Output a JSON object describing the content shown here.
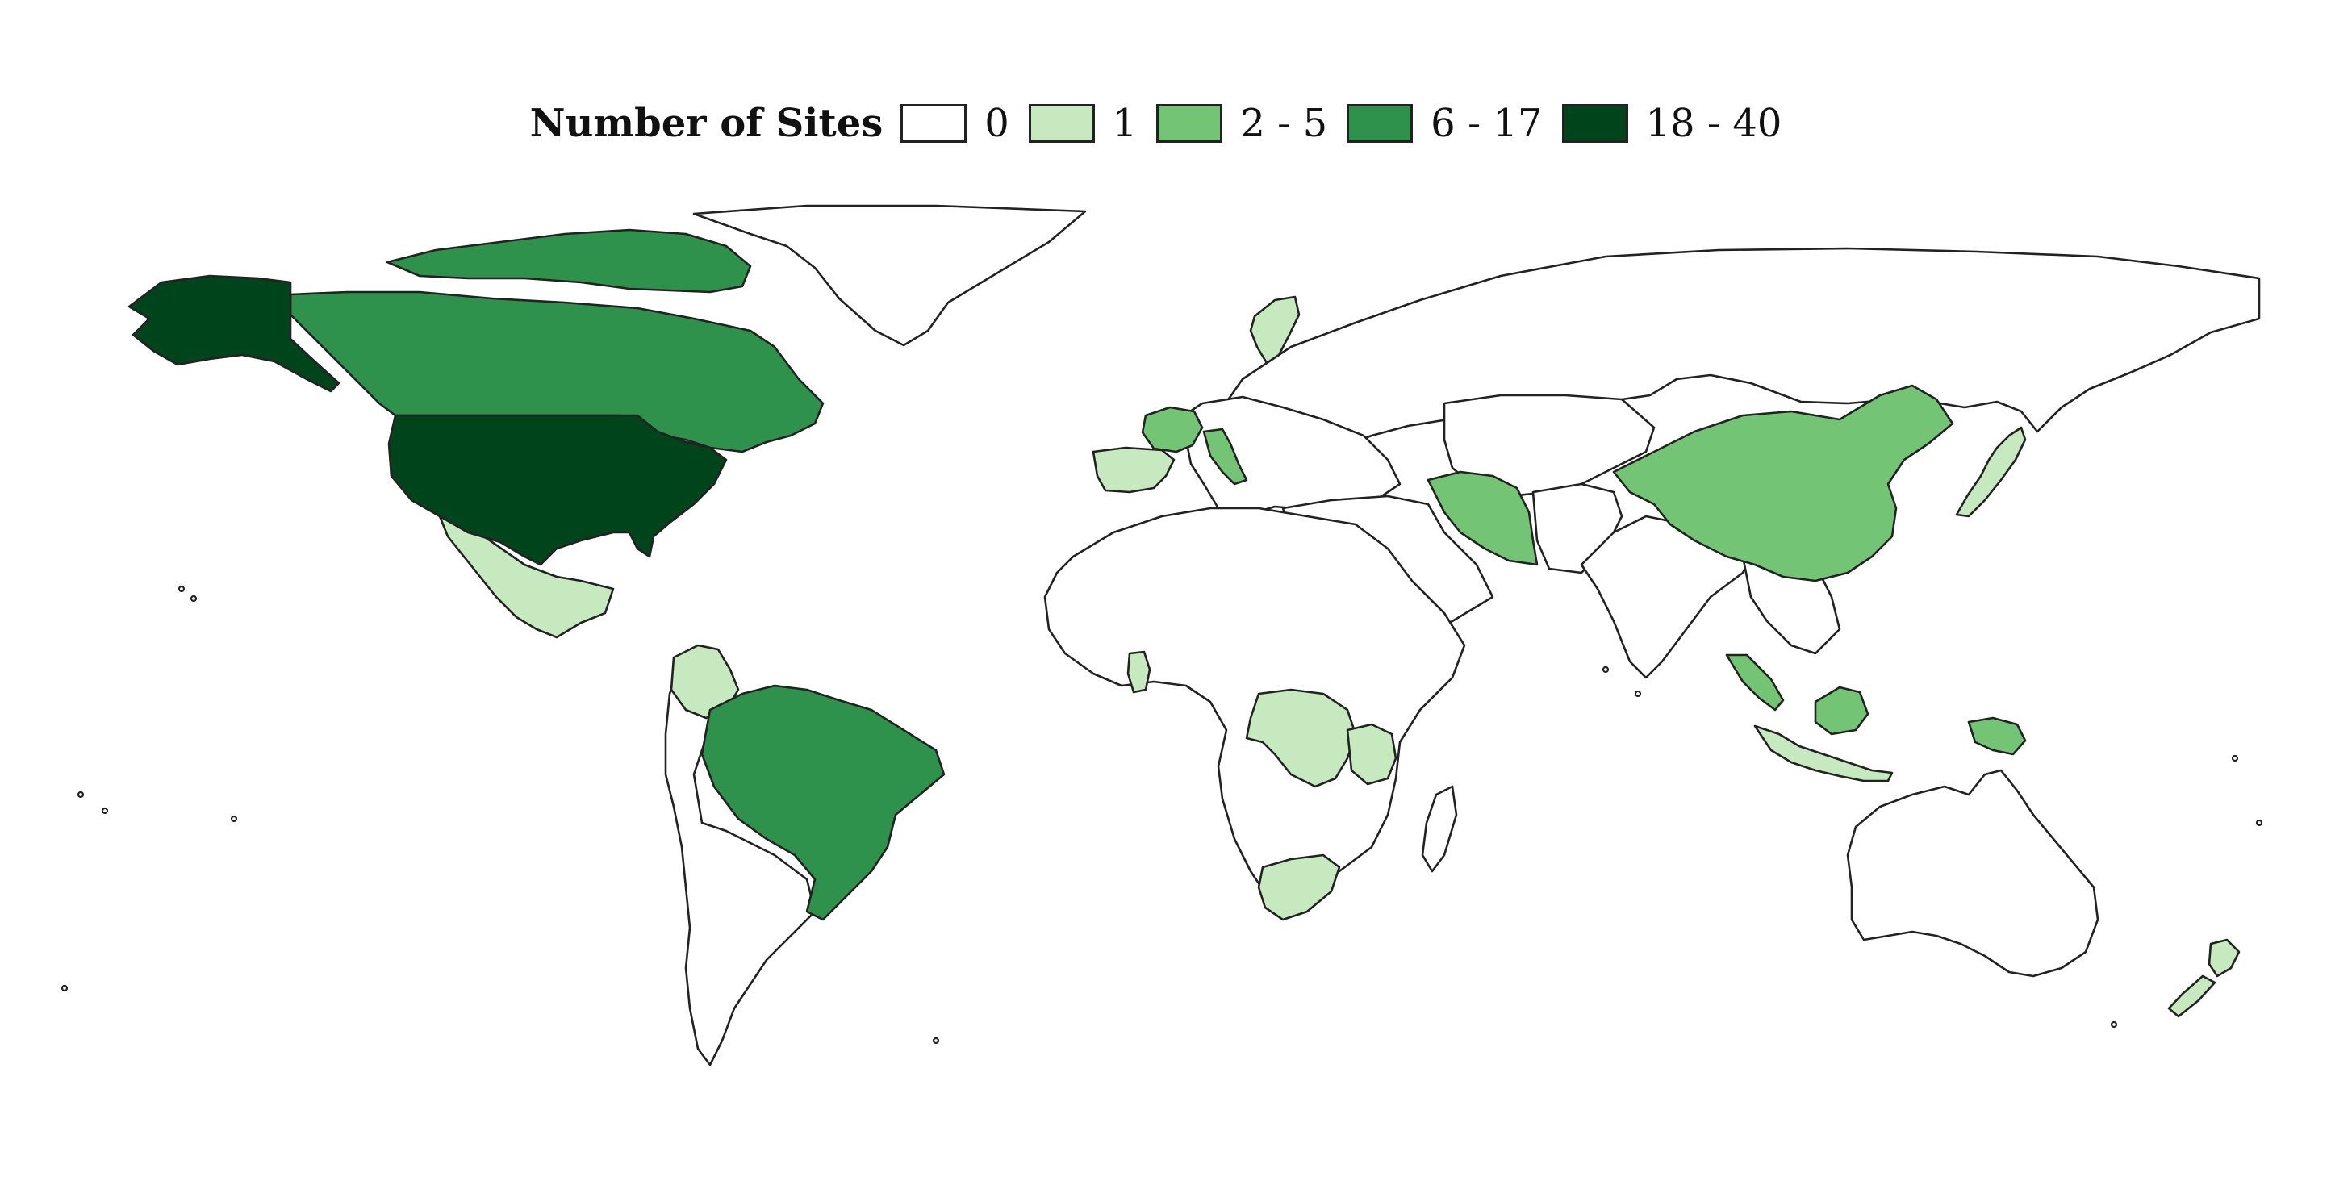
{
  "legend": {
    "title": "Number of Sites",
    "classes": [
      {
        "label": "0",
        "color": "#ffffff"
      },
      {
        "label": "1",
        "color": "#c7e9c0"
      },
      {
        "label": "2 - 5",
        "color": "#74c476"
      },
      {
        "label": "6 - 17",
        "color": "#2e924c"
      },
      {
        "label": "18 - 40",
        "color": "#00441b"
      }
    ]
  },
  "regions": [
    {
      "name": "United States",
      "class": 4
    },
    {
      "name": "Alaska",
      "class": 4
    },
    {
      "name": "Canada",
      "class": 3
    },
    {
      "name": "Brazil",
      "class": 3
    },
    {
      "name": "Mexico",
      "class": 1
    },
    {
      "name": "Colombia",
      "class": 1
    },
    {
      "name": "France",
      "class": 2
    },
    {
      "name": "Italy",
      "class": 2
    },
    {
      "name": "Spain",
      "class": 1
    },
    {
      "name": "Sweden",
      "class": 1
    },
    {
      "name": "Iran",
      "class": 2
    },
    {
      "name": "China",
      "class": 2
    },
    {
      "name": "Japan",
      "class": 1
    },
    {
      "name": "Malaysia",
      "class": 2
    },
    {
      "name": "Indonesia",
      "class": 1
    },
    {
      "name": "Papua New Guinea",
      "class": 2
    },
    {
      "name": "Ghana",
      "class": 1
    },
    {
      "name": "DR Congo",
      "class": 1
    },
    {
      "name": "Tanzania",
      "class": 1
    },
    {
      "name": "South Africa",
      "class": 1
    },
    {
      "name": "New Zealand",
      "class": 1
    },
    {
      "name": "Greenland",
      "class": 0
    },
    {
      "name": "Russia",
      "class": 0
    },
    {
      "name": "Africa (other)",
      "class": 0
    },
    {
      "name": "South America (other)",
      "class": 0
    },
    {
      "name": "Europe (other)",
      "class": 0
    },
    {
      "name": "Middle East",
      "class": 0
    },
    {
      "name": "Central Asia",
      "class": 0
    },
    {
      "name": "India",
      "class": 0
    },
    {
      "name": "Southeast Asia (other)",
      "class": 0
    },
    {
      "name": "Australia",
      "class": 0
    },
    {
      "name": "Madagascar",
      "class": 0
    }
  ]
}
